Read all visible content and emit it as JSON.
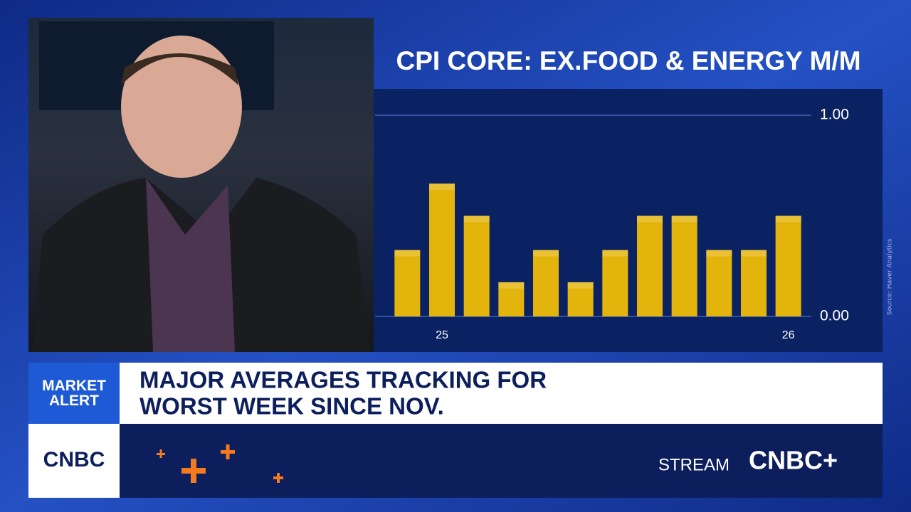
{
  "chart_data": {
    "type": "bar",
    "title": "CPI CORE: EX.FOOD & ENERGY M/M",
    "source": "Source: Haver Analytics",
    "categories": [
      null,
      "25",
      null,
      null,
      null,
      null,
      null,
      null,
      null,
      null,
      null,
      "26"
    ],
    "values": [
      0.33,
      0.66,
      0.5,
      0.17,
      0.33,
      0.17,
      0.33,
      0.5,
      0.5,
      0.33,
      0.33,
      0.5
    ],
    "color": "#e3b40c",
    "ylim": [
      0,
      1
    ],
    "yticks": [
      {
        "value": 0,
        "label": "0.00"
      },
      {
        "value": 1,
        "label": "1.00"
      }
    ],
    "grid": true
  },
  "banner": {
    "tag": "MARKET ALERT",
    "headline_lines": [
      "MAJOR AVERAGES TRACKING FOR",
      "WORST WEEK SINCE NOV."
    ]
  },
  "footer": {
    "logo": "CNBC",
    "stream": "STREAM",
    "stream_logo": "CNBC+"
  }
}
